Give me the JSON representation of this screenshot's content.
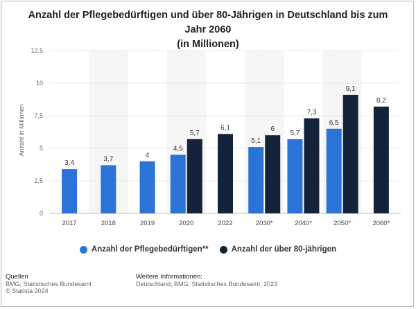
{
  "title_line1": "Anzahl der Pflegebedürftigen und über 80-Jährigen in Deutschland bis zum Jahr 2060",
  "title_line2": "(in Millionen)",
  "chart_data": {
    "type": "bar",
    "ylabel": "Anzahl in Millionen",
    "ylim": [
      0,
      12.5
    ],
    "yticks": [
      "0",
      "2,5",
      "5",
      "7,5",
      "10",
      "12,5"
    ],
    "categories": [
      "2017",
      "2018",
      "2019",
      "2020",
      "2022",
      "2030*",
      "2040*",
      "2050*",
      "2060*"
    ],
    "series": [
      {
        "name": "Anzahl der Pflegebedürftigen**",
        "color": "#2b73d6",
        "values": [
          3.4,
          3.7,
          4,
          4.5,
          null,
          5.1,
          5.7,
          6.5,
          null
        ],
        "labels": [
          "3,4",
          "3,7",
          "4",
          "4,5",
          null,
          "5,1",
          "5,7",
          "6,5",
          null
        ]
      },
      {
        "name": "Anzahl der über 80-jährigen",
        "color": "#15233a",
        "values": [
          null,
          null,
          null,
          5.7,
          6.1,
          6,
          7.3,
          9.1,
          8.2
        ],
        "labels": [
          null,
          null,
          null,
          "5,7",
          "6,1",
          "6",
          "7,3",
          "9,1",
          "8,2"
        ]
      }
    ],
    "grid": true,
    "legend_position": "bottom"
  },
  "footer": {
    "sources_heading": "Quellen",
    "sources_line1": "BMG; Statistisches Bundesamt",
    "sources_line2": "© Statista 2024",
    "info_heading": "Weitere Informationen:",
    "info_line1": "Deutschland; BMG; Statistisches Bundesamt; 2023"
  }
}
